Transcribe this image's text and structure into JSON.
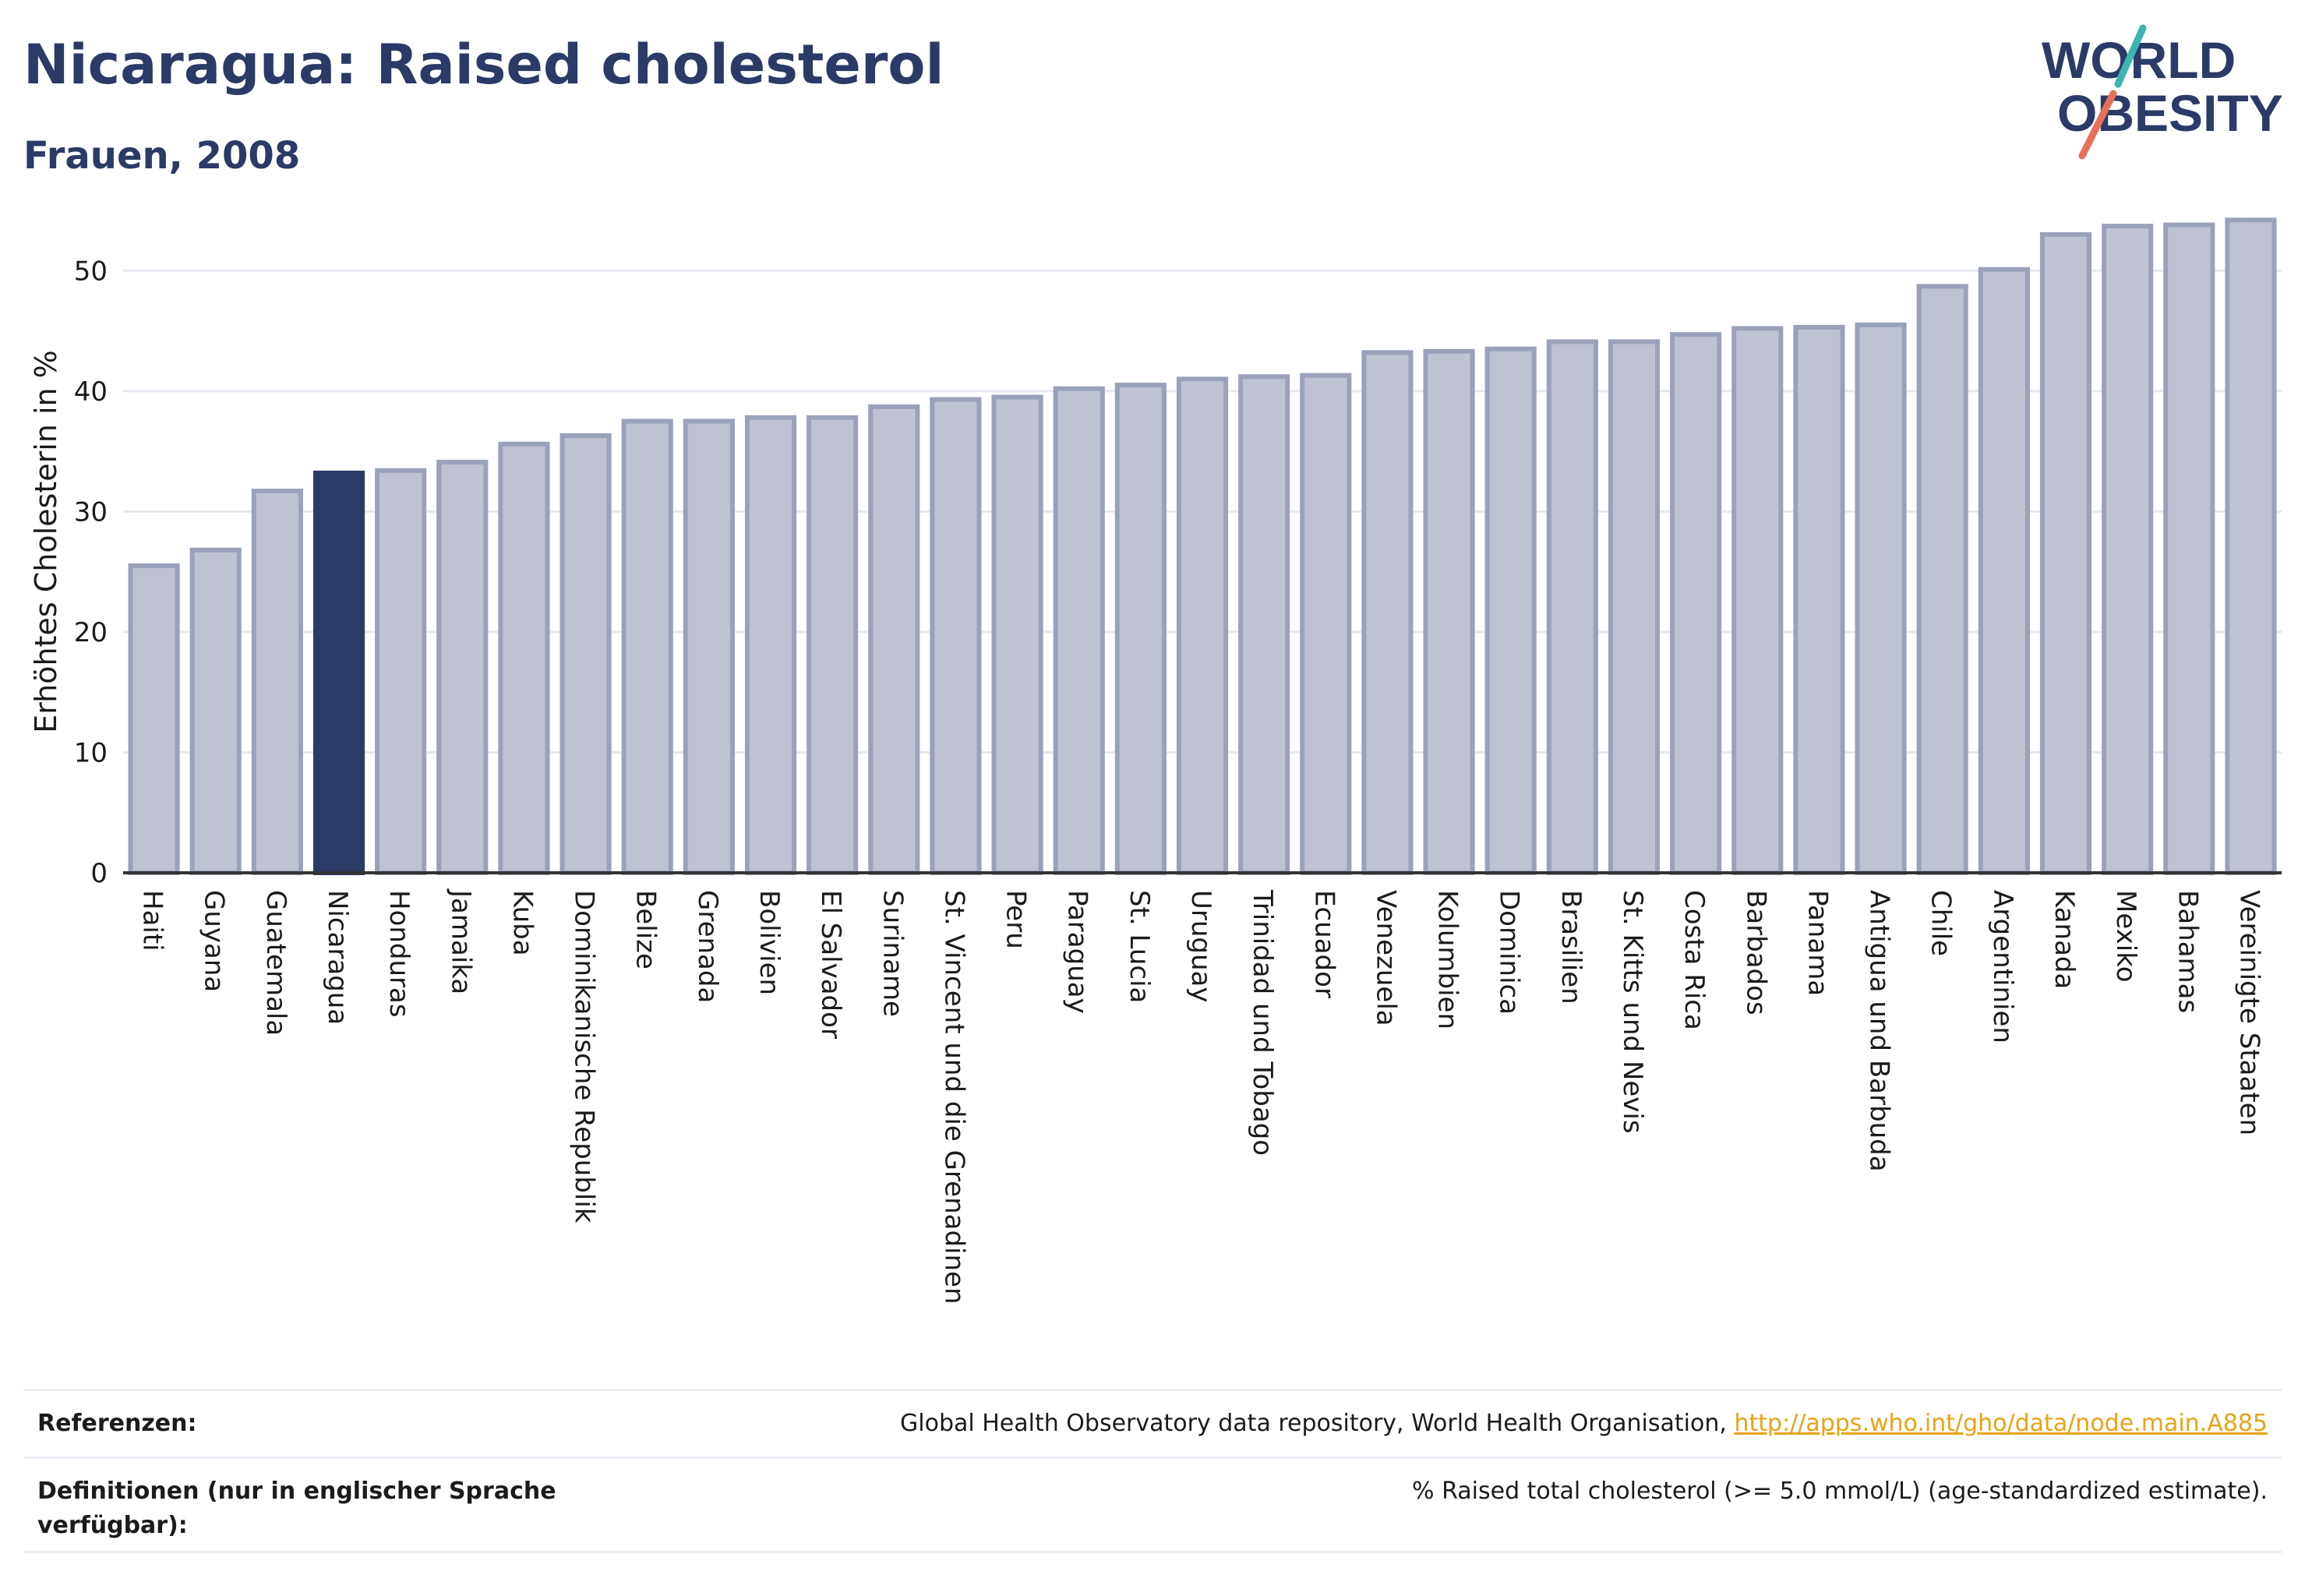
{
  "title": "Nicaragua: Raised cholesterol",
  "subtitle": "Frauen, 2008",
  "logo": {
    "line1": "WORLD",
    "line2": "OBESITY"
  },
  "colors": {
    "title": "#2b3a66",
    "bar_fill": "#bfc3d1",
    "bar_stroke": "#9aa1bb",
    "highlight": "#2b3a66",
    "grid": "#e6e8ef",
    "link": "#e8a317",
    "logo_teal": "#3bb6b0",
    "logo_red": "#e8705a"
  },
  "chart_data": {
    "type": "bar",
    "ylabel": "Erhöhtes Cholesterin in %",
    "xlabel": "",
    "ylim": [
      0,
      55
    ],
    "yticks": [
      0,
      10,
      20,
      30,
      40,
      50
    ],
    "grid": true,
    "highlight": "Nicaragua",
    "categories": [
      "Haiti",
      "Guyana",
      "Guatemala",
      "Nicaragua",
      "Honduras",
      "Jamaika",
      "Kuba",
      "Dominikanische Republik",
      "Belize",
      "Grenada",
      "Bolivien",
      "El Salvador",
      "Suriname",
      "St. Vincent und die Grenadinen",
      "Peru",
      "Paraguay",
      "St. Lucia",
      "Uruguay",
      "Trinidad und Tobago",
      "Ecuador",
      "Venezuela",
      "Kolumbien",
      "Dominica",
      "Brasilien",
      "St. Kitts und Nevis",
      "Costa Rica",
      "Barbados",
      "Panama",
      "Antigua und Barbuda",
      "Chile",
      "Argentinien",
      "Kanada",
      "Mexiko",
      "Bahamas",
      "Vereinigte Staaten"
    ],
    "values": [
      25.5,
      26.8,
      31.7,
      33.2,
      33.4,
      34.1,
      35.6,
      36.3,
      37.5,
      37.5,
      37.8,
      37.8,
      38.7,
      39.3,
      39.5,
      40.2,
      40.5,
      41.0,
      41.2,
      41.3,
      43.2,
      43.3,
      43.5,
      44.1,
      44.1,
      44.7,
      45.2,
      45.3,
      45.5,
      48.7,
      50.1,
      53.0,
      53.7,
      53.8,
      54.2
    ]
  },
  "references": {
    "ref_label": "Referenzen:",
    "ref_text": "Global Health Observatory data repository, World Health Organisation, ",
    "ref_link": "http://apps.who.int/gho/data/node.main.A885",
    "def_label": "Definitionen (nur in englischer Sprache verfügbar):",
    "def_text": "% Raised total cholesterol (>= 5.0 mmol/L) (age-standardized estimate)."
  }
}
